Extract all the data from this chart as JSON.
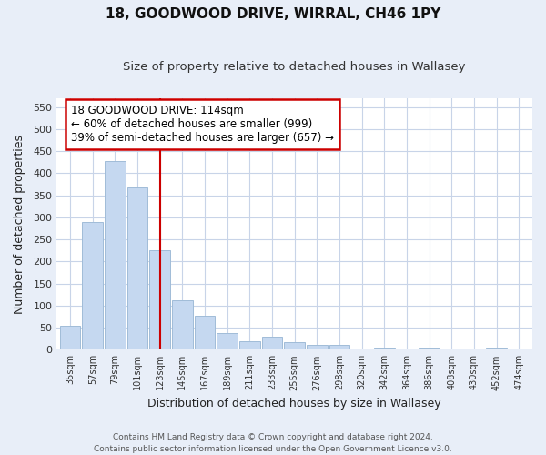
{
  "title1": "18, GOODWOOD DRIVE, WIRRAL, CH46 1PY",
  "title2": "Size of property relative to detached houses in Wallasey",
  "xlabel": "Distribution of detached houses by size in Wallasey",
  "ylabel": "Number of detached properties",
  "categories": [
    "35sqm",
    "57sqm",
    "79sqm",
    "101sqm",
    "123sqm",
    "145sqm",
    "167sqm",
    "189sqm",
    "211sqm",
    "233sqm",
    "255sqm",
    "276sqm",
    "298sqm",
    "320sqm",
    "342sqm",
    "364sqm",
    "386sqm",
    "408sqm",
    "430sqm",
    "452sqm",
    "474sqm"
  ],
  "values": [
    55,
    290,
    428,
    367,
    225,
    113,
    76,
    38,
    20,
    30,
    17,
    10,
    10,
    0,
    5,
    0,
    5,
    0,
    0,
    5
  ],
  "bar_color": "#c5d8f0",
  "bar_edge_color": "#a0bcd8",
  "vline_x": 4,
  "vline_color": "#cc0000",
  "annotation_text": "18 GOODWOOD DRIVE: 114sqm\n← 60% of detached houses are smaller (999)\n39% of semi-detached houses are larger (657) →",
  "annotation_box_color": "#ffffff",
  "annotation_box_edge": "#cc0000",
  "ylim": [
    0,
    570
  ],
  "yticks": [
    0,
    50,
    100,
    150,
    200,
    250,
    300,
    350,
    400,
    450,
    500,
    550
  ],
  "footer": "Contains HM Land Registry data © Crown copyright and database right 2024.\nContains public sector information licensed under the Open Government Licence v3.0.",
  "plot_bg_color": "#ffffff",
  "fig_bg_color": "#e8eef8",
  "grid_color": "#c8d4e8",
  "title1_fontsize": 11,
  "title2_fontsize": 10
}
